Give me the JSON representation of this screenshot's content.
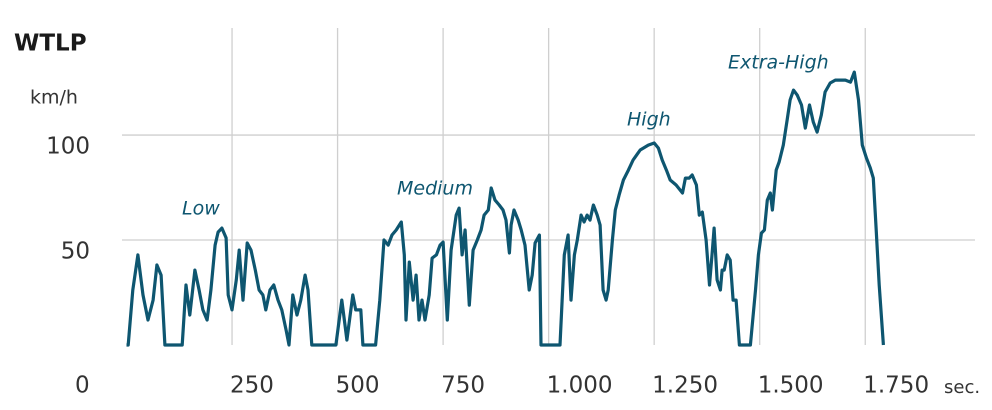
{
  "chart_data": {
    "type": "line",
    "title": "WTLP",
    "y_label": "km/h",
    "x_label": "sec.",
    "color": "#0e5670",
    "grid": true,
    "xlim": [
      0,
      2010
    ],
    "ylim": [
      0,
      151
    ],
    "xticks": [
      {
        "value": 0,
        "label": "0"
      },
      250,
      500,
      750,
      {
        "value": 1000,
        "label": "1.000"
      },
      {
        "value": 1250,
        "label": "1.250"
      },
      {
        "value": 1500,
        "label": "1.500"
      },
      {
        "value": 1750,
        "label": "1.750"
      }
    ],
    "yticks": [
      50,
      100
    ],
    "annotations": [
      "Low",
      "Medium",
      "High",
      "Extra-High"
    ],
    "x": [
      0,
      4,
      15,
      27,
      39,
      51,
      63,
      72,
      82,
      91,
      103,
      132,
      141,
      150,
      162,
      172,
      181,
      191,
      200,
      210,
      217,
      226,
      236,
      241,
      250,
      260,
      267,
      276,
      286,
      295,
      305,
      314,
      323,
      330,
      340,
      349,
      359,
      368,
      378,
      385,
      394,
      404,
      413,
      423,
      430,
      439,
      458,
      496,
      510,
      522,
      536,
      543,
      555,
      560,
      590,
      600,
      610,
      620,
      629,
      639,
      651,
      658,
      662,
      670,
      679,
      686,
      693,
      700,
      707,
      717,
      724,
      734,
      743,
      750,
      760,
      769,
      781,
      788,
      795,
      802,
      812,
      821,
      831,
      840,
      847,
      857,
      864,
      873,
      883,
      892,
      899,
      907,
      911,
      918,
      928,
      935,
      944,
      954,
      961,
      968,
      978,
      982,
      1027,
      1037,
      1046,
      1053,
      1061,
      1068,
      1077,
      1084,
      1091,
      1098,
      1106,
      1115,
      1122,
      1129,
      1136,
      1141,
      1151,
      1158,
      1167,
      1177,
      1189,
      1200,
      1217,
      1236,
      1250,
      1260,
      1269,
      1279,
      1288,
      1302,
      1317,
      1324,
      1333,
      1340,
      1350,
      1357,
      1364,
      1373,
      1381,
      1388,
      1392,
      1399,
      1407,
      1411,
      1416,
      1423,
      1430,
      1437,
      1444,
      1452,
      1478,
      1490,
      1497,
      1504,
      1511,
      1518,
      1525,
      1530,
      1539,
      1546,
      1556,
      1565,
      1572,
      1580,
      1589,
      1599,
      1608,
      1618,
      1627,
      1636,
      1646,
      1655,
      1667,
      1679,
      1691,
      1703,
      1715,
      1724,
      1734,
      1743,
      1753,
      1762,
      1769,
      1776,
      1783,
      1793
    ],
    "values": [
      0,
      0,
      26.2,
      42.9,
      23.8,
      11.9,
      21.4,
      38.1,
      33.3,
      0,
      0,
      0,
      28.6,
      14.3,
      35.7,
      26.2,
      16.7,
      11.9,
      26.2,
      47.6,
      53.8,
      55.7,
      51,
      23.8,
      16.7,
      31,
      45.2,
      21.4,
      48.6,
      45.2,
      35.7,
      26.2,
      23.8,
      16.7,
      26.2,
      28.6,
      21.4,
      16.7,
      7.1,
      0,
      23.8,
      14.3,
      21.4,
      33.3,
      26.2,
      0,
      0,
      0,
      21.4,
      2.4,
      23.8,
      16.7,
      16.7,
      0,
      0,
      21.4,
      50,
      47.6,
      52.4,
      54.8,
      58.6,
      42.9,
      11.9,
      39.5,
      21.4,
      33.3,
      11.9,
      21.4,
      11.9,
      23.8,
      41.4,
      42.9,
      47.6,
      49,
      11.9,
      45.2,
      61.9,
      65.2,
      42.9,
      54.8,
      19,
      45.2,
      50,
      54.8,
      61.9,
      64.3,
      74.8,
      69,
      66.7,
      64.3,
      59.5,
      43.8,
      57.1,
      64.3,
      59.5,
      54.8,
      47.6,
      26.2,
      33.3,
      48.6,
      52.4,
      0,
      0,
      42.9,
      52.4,
      21.4,
      42.9,
      50,
      61.9,
      58.6,
      61.9,
      59.5,
      66.7,
      61.9,
      57.1,
      26.2,
      21.4,
      26.2,
      50,
      64.3,
      71.4,
      78.6,
      83.3,
      88.1,
      92.9,
      95.2,
      96.2,
      93.8,
      88.1,
      83.3,
      78.6,
      76.2,
      72.4,
      79.5,
      79.5,
      81,
      76.2,
      61.9,
      63.3,
      50,
      28.6,
      45.2,
      55.7,
      31,
      26.2,
      35.7,
      35.7,
      42.9,
      40.5,
      21.4,
      21.4,
      0,
      0,
      26.2,
      42.9,
      53.3,
      54.8,
      69,
      72.4,
      64.3,
      83.3,
      87.1,
      95.2,
      107.1,
      116.7,
      121.4,
      119,
      114.3,
      103.3,
      114.3,
      106.2,
      101.4,
      109.5,
      120.5,
      124.8,
      126.2,
      126.2,
      126.2,
      125.2,
      130,
      116.7,
      95.2,
      89,
      84.3,
      79.5,
      54.8,
      28.6,
      0
    ]
  }
}
